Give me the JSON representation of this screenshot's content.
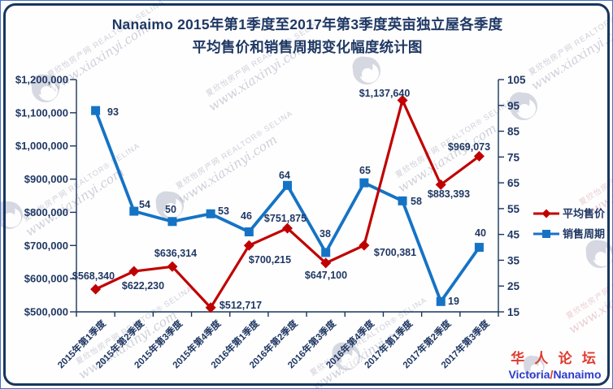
{
  "title": {
    "line1": "Nanaimo 2015年第1季度至2017年第3季度英亩独立屋各季度",
    "line2": "平均售价和销售周期变化幅度统计图"
  },
  "chart_data": {
    "type": "line",
    "title": "Nanaimo 2015年第1季度至2017年第3季度英亩独立屋各季度平均售价和销售周期变化幅度统计图",
    "categories": [
      "2015年第1季度",
      "2015年第2季度",
      "2015年第3季度",
      "2015年第4季度",
      "2016年第1季度",
      "2016年第2季度",
      "2016年第3季度",
      "2016年第4季度",
      "2017年第1季度",
      "2017年第2季度",
      "2017年第3季度"
    ],
    "series": [
      {
        "name": "平均售价",
        "axis": "left",
        "color": "#C00000",
        "marker": "diamond",
        "values": [
          568340,
          622230,
          636314,
          512717,
          700215,
          751875,
          647100,
          700381,
          1137640,
          883393,
          969073
        ],
        "point_labels": [
          "$568,340",
          "$622,230",
          "$636,314",
          "$512,717",
          "$700,215",
          "$751,875",
          "$647,100",
          "$700,381",
          "$1,137,640",
          "$883,393",
          "$969,073"
        ]
      },
      {
        "name": "销售周期",
        "axis": "right",
        "color": "#1573C5",
        "marker": "square",
        "values": [
          93,
          54,
          50,
          53,
          46,
          64,
          38,
          65,
          58,
          19,
          40
        ],
        "point_labels": [
          "93",
          "54",
          "50",
          "53",
          "46",
          "64",
          "38",
          "65",
          "58",
          "19",
          "40"
        ]
      }
    ],
    "left_axis": {
      "min": 500000,
      "max": 1200000,
      "step": 100000,
      "tick_labels": [
        "$500,000",
        "$600,000",
        "$700,000",
        "$800,000",
        "$900,000",
        "$1,000,000",
        "$1,100,000",
        "$1,200,000"
      ]
    },
    "right_axis": {
      "min": 15,
      "max": 105,
      "step": 10,
      "tick_labels": [
        "15",
        "25",
        "35",
        "45",
        "55",
        "65",
        "75",
        "85",
        "95",
        "105"
      ]
    },
    "legend": {
      "position": "right",
      "items": [
        "平均售价",
        "销售周期"
      ]
    },
    "grid": false
  },
  "watermark": {
    "site": "夏欣怡房产网",
    "agent": "REALTOR® SELINA",
    "url": "www.xiaxinyi.com"
  },
  "stamp": {
    "line1": "华 人 论 坛",
    "city1": "Victoria",
    "separator": "/",
    "city2": "Nanaimo"
  },
  "colors": {
    "text": "#1F3864",
    "price": "#C00000",
    "cycle": "#1573C5",
    "border": "#17365D",
    "outer_border": "#4472C4",
    "stamp_red": "#E0392E",
    "stamp_blue": "#2B3BCC",
    "watermark_gray": "#A6ABBE",
    "watermark_pink": "#D8A6AE"
  }
}
